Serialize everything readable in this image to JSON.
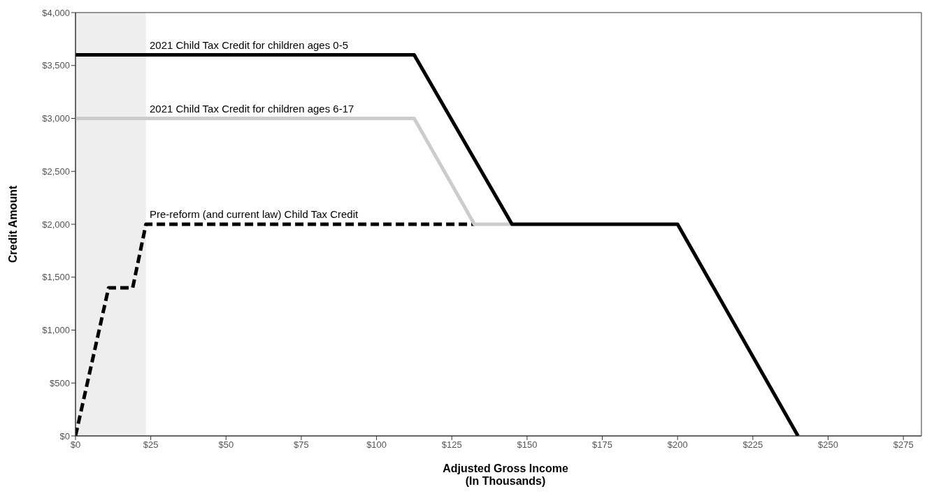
{
  "chart_data": {
    "type": "line",
    "xlabel": "Adjusted Gross Income\n(In Thousands)",
    "ylabel": "Credit Amount",
    "series": [
      {
        "x": [
          0,
          11,
          19,
          23.4,
          132.5
        ],
        "values": [
          0,
          1400,
          1400,
          2000,
          2000
        ],
        "color": "#000000",
        "line_style": "dashed"
      },
      {
        "x": [
          0,
          112.5,
          132.5,
          145
        ],
        "values": [
          3000,
          3000,
          2000,
          2000
        ],
        "color": "#cccccc",
        "line_style": "solid"
      },
      {
        "x": [
          0,
          112.5,
          145,
          200,
          240
        ],
        "values": [
          3600,
          3600,
          2000,
          2000,
          0
        ],
        "color": "#000000",
        "line_style": "solid"
      }
    ],
    "annotations": [
      {
        "text": "2021 Child Tax Credit for children ages 0-5",
        "y": 3600
      },
      {
        "text": "2021 Child Tax Credit for children ages 6-17",
        "y": 3000
      },
      {
        "text": "Pre-reform (and current law) Child Tax Credit",
        "y": 2000
      }
    ],
    "bands": [
      {
        "axis": "x",
        "from": 0,
        "to": 23.4,
        "color": "#eeeeee"
      }
    ],
    "xlim": [
      0,
      281
    ],
    "xticks": [
      {
        "value": 0,
        "label": "$0"
      },
      {
        "value": 25,
        "label": "$25"
      },
      {
        "value": 50,
        "label": "$50"
      },
      {
        "value": 75,
        "label": "$75"
      },
      {
        "value": 100,
        "label": "$100"
      },
      {
        "value": 125,
        "label": "$125"
      },
      {
        "value": 150,
        "label": "$150"
      },
      {
        "value": 175,
        "label": "$175"
      },
      {
        "value": 200,
        "label": "$200"
      },
      {
        "value": 225,
        "label": "$225"
      },
      {
        "value": 250,
        "label": "$250"
      },
      {
        "value": 275,
        "label": "$275"
      }
    ],
    "ylim": [
      0,
      4000
    ],
    "yticks": [
      {
        "value": 0,
        "label": "$0"
      },
      {
        "value": 500,
        "label": "$500"
      },
      {
        "value": 1000,
        "label": "$1,000"
      },
      {
        "value": 1500,
        "label": "$1,500"
      },
      {
        "value": 2000,
        "label": "$2,000"
      },
      {
        "value": 2500,
        "label": "$2,500"
      },
      {
        "value": 3000,
        "label": "$3,000"
      },
      {
        "value": 3500,
        "label": "$3,500"
      },
      {
        "value": 4000,
        "label": "$4,000"
      }
    ],
    "grid": false,
    "marker": "none"
  }
}
